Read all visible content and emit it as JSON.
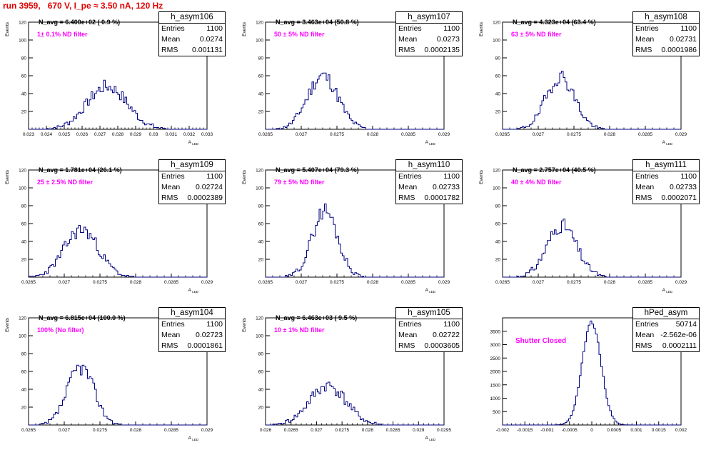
{
  "title": "run 3959,   670 V, I_pe ≈ 3.50 nA, 120 Hz",
  "colors": {
    "title": "#e00000",
    "hist": "#000080",
    "annotation": "#ff00ff"
  },
  "chart_data": [
    {
      "type": "bar",
      "name": "h_asym106",
      "ylabel": "Events",
      "xlabel": "A_LED",
      "xlim": [
        0.023,
        0.033
      ],
      "ylim": [
        0,
        120
      ],
      "xticks": [
        0.023,
        0.024,
        0.025,
        0.026,
        0.027,
        0.028,
        0.029,
        0.03,
        0.031,
        0.032,
        0.033
      ],
      "xtick_labels": [
        "0.023",
        "0.024",
        "0.025",
        "0.026",
        "0.027",
        "0.028",
        "0.029",
        "0.03",
        "0.031",
        "0.032",
        "0.033"
      ],
      "yticks": [
        20,
        40,
        60,
        80,
        100,
        120
      ],
      "stats": {
        "entries": "1100",
        "mean": "0.0274",
        "rms": "0.001131"
      },
      "annotation": "N_avg = 6.400e+02 ( 0.9 %)",
      "filter_label": "1± 0.1% ND filter",
      "hist": {
        "mean": 0.0274,
        "rms": 0.001131,
        "peak": 48,
        "bins": 100,
        "seed": 7
      }
    },
    {
      "type": "bar",
      "name": "h_asym107",
      "ylabel": "Events",
      "xlabel": "A_LED",
      "xlim": [
        0.0265,
        0.029
      ],
      "ylim": [
        0,
        120
      ],
      "xticks": [
        0.0265,
        0.027,
        0.0275,
        0.028,
        0.0285,
        0.029
      ],
      "xtick_labels": [
        "0.0265",
        "0.027",
        "0.0275",
        "0.028",
        "0.0285",
        "0.029"
      ],
      "yticks": [
        20,
        40,
        60,
        80,
        100,
        120
      ],
      "stats": {
        "entries": "1100",
        "mean": "0.0273",
        "rms": "0.0002135"
      },
      "annotation": "N_avg = 3.463e+04 (50.8 %)",
      "filter_label": "50 ± 5% ND filter",
      "hist": {
        "mean": 0.0273,
        "rms": 0.0002135,
        "peak": 60,
        "bins": 100,
        "seed": 11
      }
    },
    {
      "type": "bar",
      "name": "h_asym108",
      "ylabel": "Events",
      "xlabel": "A_LED",
      "xlim": [
        0.0265,
        0.029
      ],
      "ylim": [
        0,
        120
      ],
      "xticks": [
        0.0265,
        0.027,
        0.0275,
        0.028,
        0.0285,
        0.029
      ],
      "xtick_labels": [
        "0.0265",
        "0.027",
        "0.0275",
        "0.028",
        "0.0285",
        "0.029"
      ],
      "yticks": [
        20,
        40,
        60,
        80,
        100,
        120
      ],
      "stats": {
        "entries": "1100",
        "mean": "0.02731",
        "rms": "0.0001986"
      },
      "annotation": "N_avg = 4.323e+04 (63.4 %)",
      "filter_label": "63 ± 5% ND filter",
      "hist": {
        "mean": 0.02731,
        "rms": 0.0001986,
        "peak": 59,
        "bins": 100,
        "seed": 19
      }
    },
    {
      "type": "bar",
      "name": "h_asym109",
      "ylabel": "Events",
      "xlabel": "A_LED",
      "xlim": [
        0.0265,
        0.029
      ],
      "ylim": [
        0,
        120
      ],
      "xticks": [
        0.0265,
        0.027,
        0.0275,
        0.028,
        0.0285,
        0.029
      ],
      "xtick_labels": [
        "0.0265",
        "0.027",
        "0.0275",
        "0.028",
        "0.0285",
        "0.029"
      ],
      "yticks": [
        20,
        40,
        60,
        80,
        100,
        120
      ],
      "stats": {
        "entries": "1100",
        "mean": "0.02724",
        "rms": "0.0002389"
      },
      "annotation": "N_avg = 1.781e+04 (26.1 %)",
      "filter_label": "25 ± 2.5% ND filter",
      "hist": {
        "mean": 0.02724,
        "rms": 0.0002389,
        "peak": 53,
        "bins": 100,
        "seed": 23
      }
    },
    {
      "type": "bar",
      "name": "h_asym110",
      "ylabel": "Events",
      "xlabel": "A_LED",
      "xlim": [
        0.0265,
        0.029
      ],
      "ylim": [
        0,
        120
      ],
      "xticks": [
        0.0265,
        0.027,
        0.0275,
        0.028,
        0.0285,
        0.029
      ],
      "xtick_labels": [
        "0.0265",
        "0.027",
        "0.0275",
        "0.028",
        "0.0285",
        "0.029"
      ],
      "yticks": [
        20,
        40,
        60,
        80,
        100,
        120
      ],
      "stats": {
        "entries": "1100",
        "mean": "0.02733",
        "rms": "0.0001782"
      },
      "annotation": "N_avg = 5.407e+04 (79.3 %)",
      "filter_label": "79 ± 5% ND filter",
      "hist": {
        "mean": 0.02733,
        "rms": 0.0001782,
        "peak": 75,
        "bins": 100,
        "seed": 29
      }
    },
    {
      "type": "bar",
      "name": "h_asym111",
      "ylabel": "Events",
      "xlabel": "A_LED",
      "xlim": [
        0.0265,
        0.029
      ],
      "ylim": [
        0,
        120
      ],
      "xticks": [
        0.0265,
        0.027,
        0.0275,
        0.028,
        0.0285,
        0.029
      ],
      "xtick_labels": [
        "0.0265",
        "0.027",
        "0.0275",
        "0.028",
        "0.0285",
        "0.029"
      ],
      "yticks": [
        20,
        40,
        60,
        80,
        100,
        120
      ],
      "stats": {
        "entries": "1100",
        "mean": "0.02733",
        "rms": "0.0002071"
      },
      "annotation": "N_avg = 2.757e+04 (40.5 %)",
      "filter_label": "40 ± 4% ND filter",
      "hist": {
        "mean": 0.02733,
        "rms": 0.0002071,
        "peak": 58,
        "bins": 100,
        "seed": 31
      }
    },
    {
      "type": "bar",
      "name": "h_asym104",
      "ylabel": "Events",
      "xlabel": "A_LED",
      "xlim": [
        0.0265,
        0.029
      ],
      "ylim": [
        0,
        120
      ],
      "xticks": [
        0.0265,
        0.027,
        0.0275,
        0.028,
        0.0285,
        0.029
      ],
      "xtick_labels": [
        "0.0265",
        "0.027",
        "0.0275",
        "0.028",
        "0.0285",
        "0.029"
      ],
      "yticks": [
        20,
        40,
        60,
        80,
        100,
        120
      ],
      "stats": {
        "entries": "1100",
        "mean": "0.02723",
        "rms": "0.0001861"
      },
      "annotation": "N_avg = 6.815e+04 (100.0 %)",
      "filter_label": "100% (No filter)",
      "hist": {
        "mean": 0.02723,
        "rms": 0.0001861,
        "peak": 65,
        "bins": 100,
        "seed": 37
      }
    },
    {
      "type": "bar",
      "name": "h_asym105",
      "ylabel": "Events",
      "xlabel": "A_LED",
      "xlim": [
        0.026,
        0.0295
      ],
      "ylim": [
        0,
        120
      ],
      "xticks": [
        0.026,
        0.0265,
        0.027,
        0.0275,
        0.028,
        0.0285,
        0.029,
        0.0295
      ],
      "xtick_labels": [
        "0.026",
        "0.0265",
        "0.027",
        "0.0275",
        "0.028",
        "0.0285",
        "0.029",
        "0.0295"
      ],
      "yticks": [
        20,
        40,
        60,
        80,
        100,
        120
      ],
      "stats": {
        "entries": "1100",
        "mean": "0.02722",
        "rms": "0.0003605"
      },
      "annotation": "N_avg = 6.463e+03 ( 9.5 %)",
      "filter_label": "10 ± 1% ND filter",
      "hist": {
        "mean": 0.02722,
        "rms": 0.0003605,
        "peak": 44,
        "bins": 100,
        "seed": 41
      }
    },
    {
      "type": "bar",
      "name": "hPed_asym",
      "ylabel": "",
      "xlabel": "",
      "xlim": [
        -0.002,
        0.002
      ],
      "ylim": [
        0,
        4000
      ],
      "xticks": [
        -0.002,
        -0.0015,
        -0.001,
        -0.0005,
        0,
        0.0005,
        0.001,
        0.0015,
        0.002
      ],
      "xtick_labels": [
        "-0.002",
        "-0.0015",
        "-0.001",
        "-0.0005",
        "0",
        "0.0005",
        "0.001",
        "0.0015",
        "0.002"
      ],
      "yticks": [
        500,
        1000,
        1500,
        2000,
        2500,
        3000,
        3500
      ],
      "stats": {
        "entries": "50714",
        "mean": "-2.562e-06",
        "rms": "0.0002111"
      },
      "annotation": "",
      "filter_label": "Shutter Closed",
      "hist": {
        "mean": -2.562e-06,
        "rms": 0.0002111,
        "peak": 3850,
        "bins": 100,
        "seed": 43
      }
    }
  ]
}
